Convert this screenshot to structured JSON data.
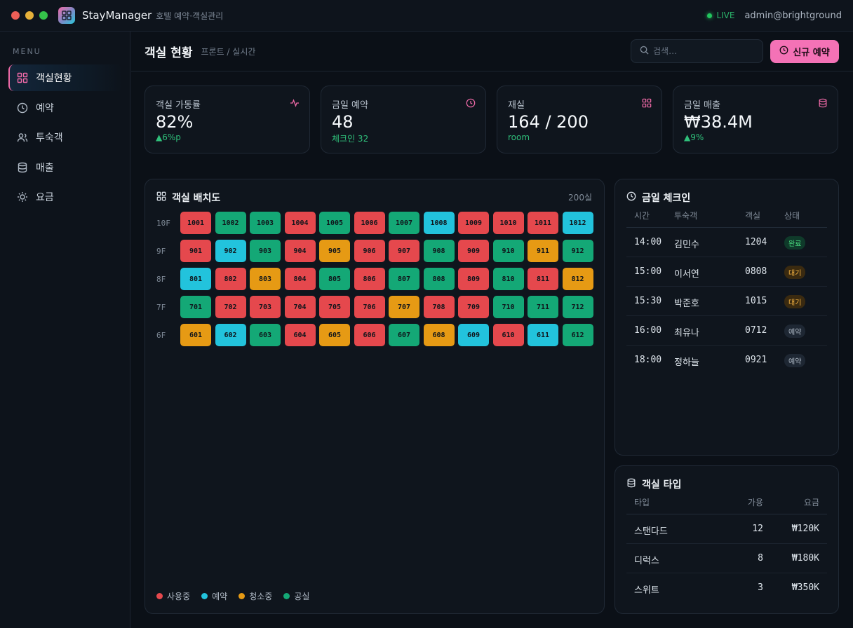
{
  "window": {
    "app_name": "StayManager",
    "app_subtitle": "호텔 예약·객실관리",
    "live_label": "LIVE",
    "user": "admin@brightground"
  },
  "sidebar": {
    "menu_label": "MENU",
    "items": [
      {
        "label": "객실현황",
        "icon": "grid-icon",
        "active": true
      },
      {
        "label": "예약",
        "icon": "clock-icon",
        "active": false
      },
      {
        "label": "투숙객",
        "icon": "users-icon",
        "active": false
      },
      {
        "label": "매출",
        "icon": "database-icon",
        "active": false
      },
      {
        "label": "요금",
        "icon": "sun-icon",
        "active": false
      }
    ]
  },
  "header": {
    "title": "객실 현황",
    "breadcrumb": "프론트 / 실시간",
    "search_placeholder": "검색…",
    "new_button": "신규 예약"
  },
  "stats": [
    {
      "label": "객실 가동률",
      "value": "82%",
      "sub": "▲6%p",
      "icon": "pulse-icon"
    },
    {
      "label": "금일 예약",
      "value": "48",
      "sub": "체크인 32",
      "icon": "clock-icon"
    },
    {
      "label": "재실",
      "value": "164 / 200",
      "sub": "room",
      "icon": "grid-icon"
    },
    {
      "label": "금일 매출",
      "value": "₩38.4M",
      "sub": "▲9%",
      "icon": "database-icon"
    }
  ],
  "room_map": {
    "title": "객실 배치도",
    "count": "200실",
    "colors": {
      "occupied": "#e5484d",
      "reserved": "#22c3dc",
      "cleaning": "#e69a14",
      "vacant": "#14a876"
    },
    "floors": [
      {
        "label": "10F",
        "rooms": [
          {
            "no": "1001",
            "s": "occupied"
          },
          {
            "no": "1002",
            "s": "vacant"
          },
          {
            "no": "1003",
            "s": "vacant"
          },
          {
            "no": "1004",
            "s": "occupied"
          },
          {
            "no": "1005",
            "s": "vacant"
          },
          {
            "no": "1006",
            "s": "occupied"
          },
          {
            "no": "1007",
            "s": "vacant"
          },
          {
            "no": "1008",
            "s": "reserved"
          },
          {
            "no": "1009",
            "s": "occupied"
          },
          {
            "no": "1010",
            "s": "occupied"
          },
          {
            "no": "1011",
            "s": "occupied"
          },
          {
            "no": "1012",
            "s": "reserved"
          }
        ]
      },
      {
        "label": "9F",
        "rooms": [
          {
            "no": "901",
            "s": "occupied"
          },
          {
            "no": "902",
            "s": "reserved"
          },
          {
            "no": "903",
            "s": "vacant"
          },
          {
            "no": "904",
            "s": "occupied"
          },
          {
            "no": "905",
            "s": "cleaning"
          },
          {
            "no": "906",
            "s": "occupied"
          },
          {
            "no": "907",
            "s": "occupied"
          },
          {
            "no": "908",
            "s": "vacant"
          },
          {
            "no": "909",
            "s": "occupied"
          },
          {
            "no": "910",
            "s": "vacant"
          },
          {
            "no": "911",
            "s": "cleaning"
          },
          {
            "no": "912",
            "s": "vacant"
          }
        ]
      },
      {
        "label": "8F",
        "rooms": [
          {
            "no": "801",
            "s": "reserved"
          },
          {
            "no": "802",
            "s": "occupied"
          },
          {
            "no": "803",
            "s": "cleaning"
          },
          {
            "no": "804",
            "s": "occupied"
          },
          {
            "no": "805",
            "s": "vacant"
          },
          {
            "no": "806",
            "s": "occupied"
          },
          {
            "no": "807",
            "s": "vacant"
          },
          {
            "no": "808",
            "s": "vacant"
          },
          {
            "no": "809",
            "s": "occupied"
          },
          {
            "no": "810",
            "s": "vacant"
          },
          {
            "no": "811",
            "s": "occupied"
          },
          {
            "no": "812",
            "s": "cleaning"
          }
        ]
      },
      {
        "label": "7F",
        "rooms": [
          {
            "no": "701",
            "s": "vacant"
          },
          {
            "no": "702",
            "s": "occupied"
          },
          {
            "no": "703",
            "s": "occupied"
          },
          {
            "no": "704",
            "s": "occupied"
          },
          {
            "no": "705",
            "s": "occupied"
          },
          {
            "no": "706",
            "s": "occupied"
          },
          {
            "no": "707",
            "s": "cleaning"
          },
          {
            "no": "708",
            "s": "occupied"
          },
          {
            "no": "709",
            "s": "occupied"
          },
          {
            "no": "710",
            "s": "vacant"
          },
          {
            "no": "711",
            "s": "vacant"
          },
          {
            "no": "712",
            "s": "vacant"
          }
        ]
      },
      {
        "label": "6F",
        "rooms": [
          {
            "no": "601",
            "s": "cleaning"
          },
          {
            "no": "602",
            "s": "reserved"
          },
          {
            "no": "603",
            "s": "vacant"
          },
          {
            "no": "604",
            "s": "occupied"
          },
          {
            "no": "605",
            "s": "cleaning"
          },
          {
            "no": "606",
            "s": "occupied"
          },
          {
            "no": "607",
            "s": "vacant"
          },
          {
            "no": "608",
            "s": "cleaning"
          },
          {
            "no": "609",
            "s": "reserved"
          },
          {
            "no": "610",
            "s": "occupied"
          },
          {
            "no": "611",
            "s": "reserved"
          },
          {
            "no": "612",
            "s": "vacant"
          }
        ]
      }
    ],
    "legend": [
      {
        "label": "사용중",
        "s": "occupied"
      },
      {
        "label": "예약",
        "s": "reserved"
      },
      {
        "label": "청소중",
        "s": "cleaning"
      },
      {
        "label": "공실",
        "s": "vacant"
      }
    ]
  },
  "checkin": {
    "title": "금일 체크인",
    "headers": [
      "시간",
      "투숙객",
      "객실",
      "상태"
    ],
    "rows": [
      {
        "time": "14:00",
        "guest": "김민수",
        "room": "1204",
        "status": "완료",
        "kind": "done"
      },
      {
        "time": "15:00",
        "guest": "이서연",
        "room": "0808",
        "status": "대기",
        "kind": "wait"
      },
      {
        "time": "15:30",
        "guest": "박준호",
        "room": "1015",
        "status": "대기",
        "kind": "wait"
      },
      {
        "time": "16:00",
        "guest": "최유나",
        "room": "0712",
        "status": "예약",
        "kind": "res"
      },
      {
        "time": "18:00",
        "guest": "정하늘",
        "room": "0921",
        "status": "예약",
        "kind": "res"
      }
    ]
  },
  "room_types": {
    "title": "객실 타입",
    "headers": [
      "타입",
      "가용",
      "요금"
    ],
    "rows": [
      {
        "type": "스탠다드",
        "avail": "12",
        "rate": "₩120K"
      },
      {
        "type": "디럭스",
        "avail": "8",
        "rate": "₩180K"
      },
      {
        "type": "스위트",
        "avail": "3",
        "rate": "₩350K"
      }
    ]
  }
}
